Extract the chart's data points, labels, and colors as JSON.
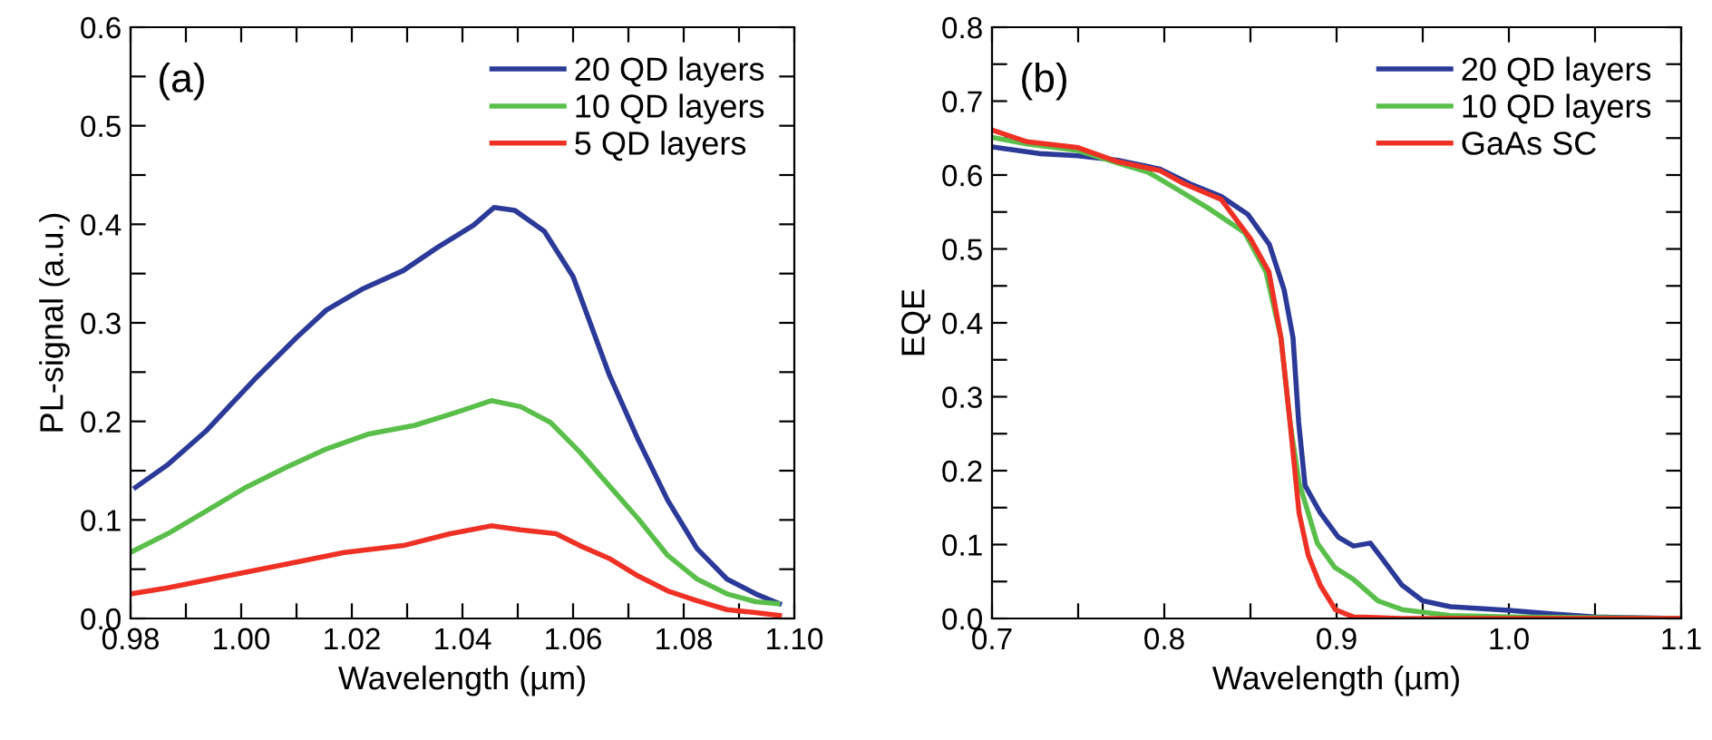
{
  "chart_data": [
    {
      "type": "line",
      "xlabel": "Wavelength (µm)",
      "ylabel": "PL-signal (a.u.)",
      "annotations": [
        "(a)"
      ],
      "legend": "top right",
      "grid": false,
      "xlim": [
        0.98,
        1.1
      ],
      "xticks": [
        0.98,
        {
          "value": 0.99,
          "label": null
        },
        {
          "value": 1.0,
          "label": "1.00"
        },
        {
          "value": 1.01,
          "label": null
        },
        1.02,
        {
          "value": 1.03,
          "label": null
        },
        1.04,
        {
          "value": 1.05,
          "label": null
        },
        1.06,
        {
          "value": 1.07,
          "label": null
        },
        1.08,
        {
          "value": 1.09,
          "label": null
        },
        {
          "value": 1.1,
          "label": "1.10"
        }
      ],
      "ylim": [
        0,
        0.6
      ],
      "yticks": [
        {
          "value": 0,
          "label": "0.0"
        },
        {
          "value": 0.05,
          "label": null
        },
        0.1,
        {
          "value": 0.15,
          "label": null
        },
        0.2,
        {
          "value": 0.25,
          "label": null
        },
        0.3,
        {
          "value": 0.35,
          "label": null
        },
        0.4,
        {
          "value": 0.45,
          "label": null
        },
        0.5,
        {
          "value": 0.55,
          "label": null
        },
        0.6
      ],
      "series": [
        {
          "name": "20 QD layers",
          "color": "#2b3a98",
          "x": [
            0.9809,
            0.9867,
            0.9936,
            1.0023,
            1.01,
            1.0154,
            1.0218,
            1.0293,
            1.0356,
            1.042,
            1.0457,
            1.0495,
            1.0548,
            1.06,
            1.0665,
            1.0718,
            1.0771,
            1.0824,
            1.0878,
            1.093,
            1.0973
          ],
          "values": [
            0.133,
            0.156,
            0.19,
            0.242,
            0.285,
            0.313,
            0.334,
            0.353,
            0.377,
            0.399,
            0.417,
            0.414,
            0.393,
            0.347,
            0.248,
            0.181,
            0.12,
            0.071,
            0.04,
            0.025,
            0.015
          ]
        },
        {
          "name": "10 QD layers",
          "color": "#5abf4a",
          "x": [
            0.98,
            0.9867,
            0.9931,
            1.0005,
            1.008,
            1.0154,
            1.0229,
            1.0314,
            1.0388,
            1.0452,
            1.0505,
            1.0559,
            1.0612,
            1.0665,
            1.0718,
            1.0771,
            1.0824,
            1.0878,
            1.093,
            1.097
          ],
          "values": [
            0.067,
            0.086,
            0.107,
            0.132,
            0.153,
            0.172,
            0.187,
            0.196,
            0.209,
            0.221,
            0.215,
            0.199,
            0.169,
            0.135,
            0.101,
            0.064,
            0.04,
            0.025,
            0.017,
            0.015
          ]
        },
        {
          "name": "5 QD layers",
          "color": "#ee3124",
          "x": [
            0.98,
            0.9867,
            0.9973,
            1.008,
            1.0186,
            1.0293,
            1.0378,
            1.0452,
            1.0505,
            1.0569,
            1.0612,
            1.0665,
            1.0718,
            1.0771,
            1.0824,
            1.0878,
            1.093,
            1.0973
          ],
          "values": [
            0.025,
            0.031,
            0.043,
            0.055,
            0.067,
            0.074,
            0.086,
            0.094,
            0.09,
            0.086,
            0.074,
            0.061,
            0.043,
            0.028,
            0.018,
            0.009,
            0.006,
            0.003
          ]
        }
      ]
    },
    {
      "type": "line",
      "xlabel": "Wavelength (µm)",
      "ylabel": "EQE",
      "annotations": [
        "(b)"
      ],
      "legend": "top right",
      "grid": false,
      "xlim": [
        0.7,
        1.1
      ],
      "xticks": [
        0.7,
        {
          "value": 0.75,
          "label": null
        },
        0.8,
        {
          "value": 0.85,
          "label": null
        },
        0.9,
        {
          "value": 0.95,
          "label": null
        },
        {
          "value": 1.0,
          "label": "1.0"
        },
        {
          "value": 1.05,
          "label": null
        },
        1.1
      ],
      "ylim": [
        0,
        0.8
      ],
      "yticks": [
        {
          "value": 0,
          "label": "0.0"
        },
        {
          "value": 0.05,
          "label": null
        },
        0.1,
        {
          "value": 0.15,
          "label": null
        },
        0.2,
        {
          "value": 0.25,
          "label": null
        },
        0.3,
        {
          "value": 0.35,
          "label": null
        },
        0.4,
        {
          "value": 0.45,
          "label": null
        },
        0.5,
        {
          "value": 0.55,
          "label": null
        },
        0.6,
        {
          "value": 0.65,
          "label": null
        },
        0.7,
        {
          "value": 0.75,
          "label": null
        },
        0.8
      ],
      "series": [
        {
          "name": "20 QD layers",
          "color": "#2b3a98",
          "x": [
            0.7,
            0.7274,
            0.75,
            0.773,
            0.7975,
            0.815,
            0.833,
            0.8484,
            0.861,
            0.8695,
            0.8747,
            0.878,
            0.8817,
            0.8905,
            0.901,
            0.9098,
            0.9196,
            0.9274,
            0.938,
            0.95,
            0.966,
            1.0,
            1.0256,
            1.05,
            1.1
          ],
          "values": [
            0.638,
            0.629,
            0.626,
            0.62,
            0.608,
            0.588,
            0.571,
            0.547,
            0.506,
            0.445,
            0.38,
            0.265,
            0.18,
            0.143,
            0.11,
            0.098,
            0.102,
            0.078,
            0.045,
            0.024,
            0.016,
            0.011,
            0.006,
            0.002,
            0
          ]
        },
        {
          "name": "10 QD layers",
          "color": "#5abf4a",
          "x": [
            0.7,
            0.7204,
            0.75,
            0.773,
            0.7905,
            0.808,
            0.8256,
            0.8467,
            0.859,
            0.8677,
            0.873,
            0.8782,
            0.8888,
            0.899,
            0.9098,
            0.9239,
            0.938,
            0.966,
            1.0,
            1.1
          ],
          "values": [
            0.651,
            0.642,
            0.633,
            0.616,
            0.604,
            0.58,
            0.555,
            0.522,
            0.469,
            0.38,
            0.265,
            0.184,
            0.102,
            0.069,
            0.053,
            0.024,
            0.012,
            0.004,
            0.002,
            0
          ]
        },
        {
          "name": "GaAs SC",
          "color": "#ee3124",
          "x": [
            0.7,
            0.7204,
            0.75,
            0.773,
            0.7975,
            0.8116,
            0.833,
            0.85,
            0.8607,
            0.8677,
            0.873,
            0.8782,
            0.8835,
            0.8905,
            0.8993,
            0.9098,
            0.938,
            1.1
          ],
          "values": [
            0.661,
            0.645,
            0.637,
            0.618,
            0.606,
            0.588,
            0.567,
            0.514,
            0.469,
            0.38,
            0.265,
            0.143,
            0.086,
            0.045,
            0.012,
            0.002,
            0,
            0
          ]
        }
      ]
    }
  ]
}
